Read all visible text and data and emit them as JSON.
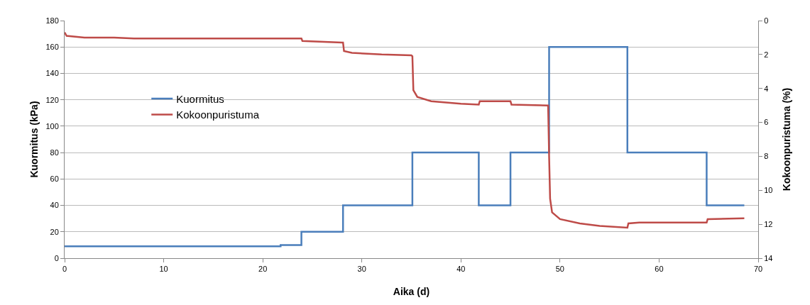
{
  "chart_data": {
    "type": "line",
    "xlabel": "Aika (d)",
    "ylabel": "Kuormitus (kPa)",
    "y2label": "Kokoonpuristuma (%)",
    "xlim": [
      0,
      70
    ],
    "xticks": [
      0,
      10,
      20,
      30,
      40,
      50,
      60,
      70
    ],
    "ylim": [
      0,
      180
    ],
    "yticks": [
      0,
      20,
      40,
      60,
      80,
      100,
      120,
      140,
      160,
      180
    ],
    "y2lim": [
      14,
      0
    ],
    "y2ticks": [
      0,
      2,
      4,
      6,
      8,
      10,
      12,
      14
    ],
    "grid": "y",
    "legend": "top left",
    "marker": "none",
    "line_style": "solid",
    "series": [
      {
        "name": "Kuormitus",
        "type": "step",
        "color": "#4a7ebb",
        "x": [
          0,
          21.8,
          23.9,
          28.1,
          35.1,
          41.8,
          45,
          48.9,
          56.8,
          64.8,
          68.6
        ],
        "values": [
          9,
          10,
          20,
          40,
          80,
          40,
          80,
          160,
          80,
          40,
          40
        ]
      },
      {
        "name": "Kokoonpuristuma",
        "axis": "y2",
        "color": "#be4b48",
        "x": [
          0,
          0.2,
          2,
          5,
          7,
          23.9,
          24,
          28,
          28.1,
          28.2,
          29,
          32,
          35,
          35.1,
          35.2,
          35.6,
          37,
          40,
          41.8,
          41.9,
          45,
          45.1,
          48.8,
          48.9,
          49,
          49.2,
          50,
          52,
          54,
          56.8,
          56.9,
          58,
          64.8,
          64.9,
          68.6
        ],
        "values": [
          0.7,
          0.9,
          1.0,
          1.0,
          1.05,
          1.05,
          1.2,
          1.3,
          1.3,
          1.8,
          1.9,
          2.0,
          2.05,
          2.1,
          4.1,
          4.5,
          4.75,
          4.9,
          4.95,
          4.75,
          4.75,
          4.95,
          5.0,
          8,
          10.5,
          11.3,
          11.7,
          11.95,
          12.1,
          12.2,
          11.95,
          11.9,
          11.9,
          11.7,
          11.65
        ]
      }
    ]
  }
}
